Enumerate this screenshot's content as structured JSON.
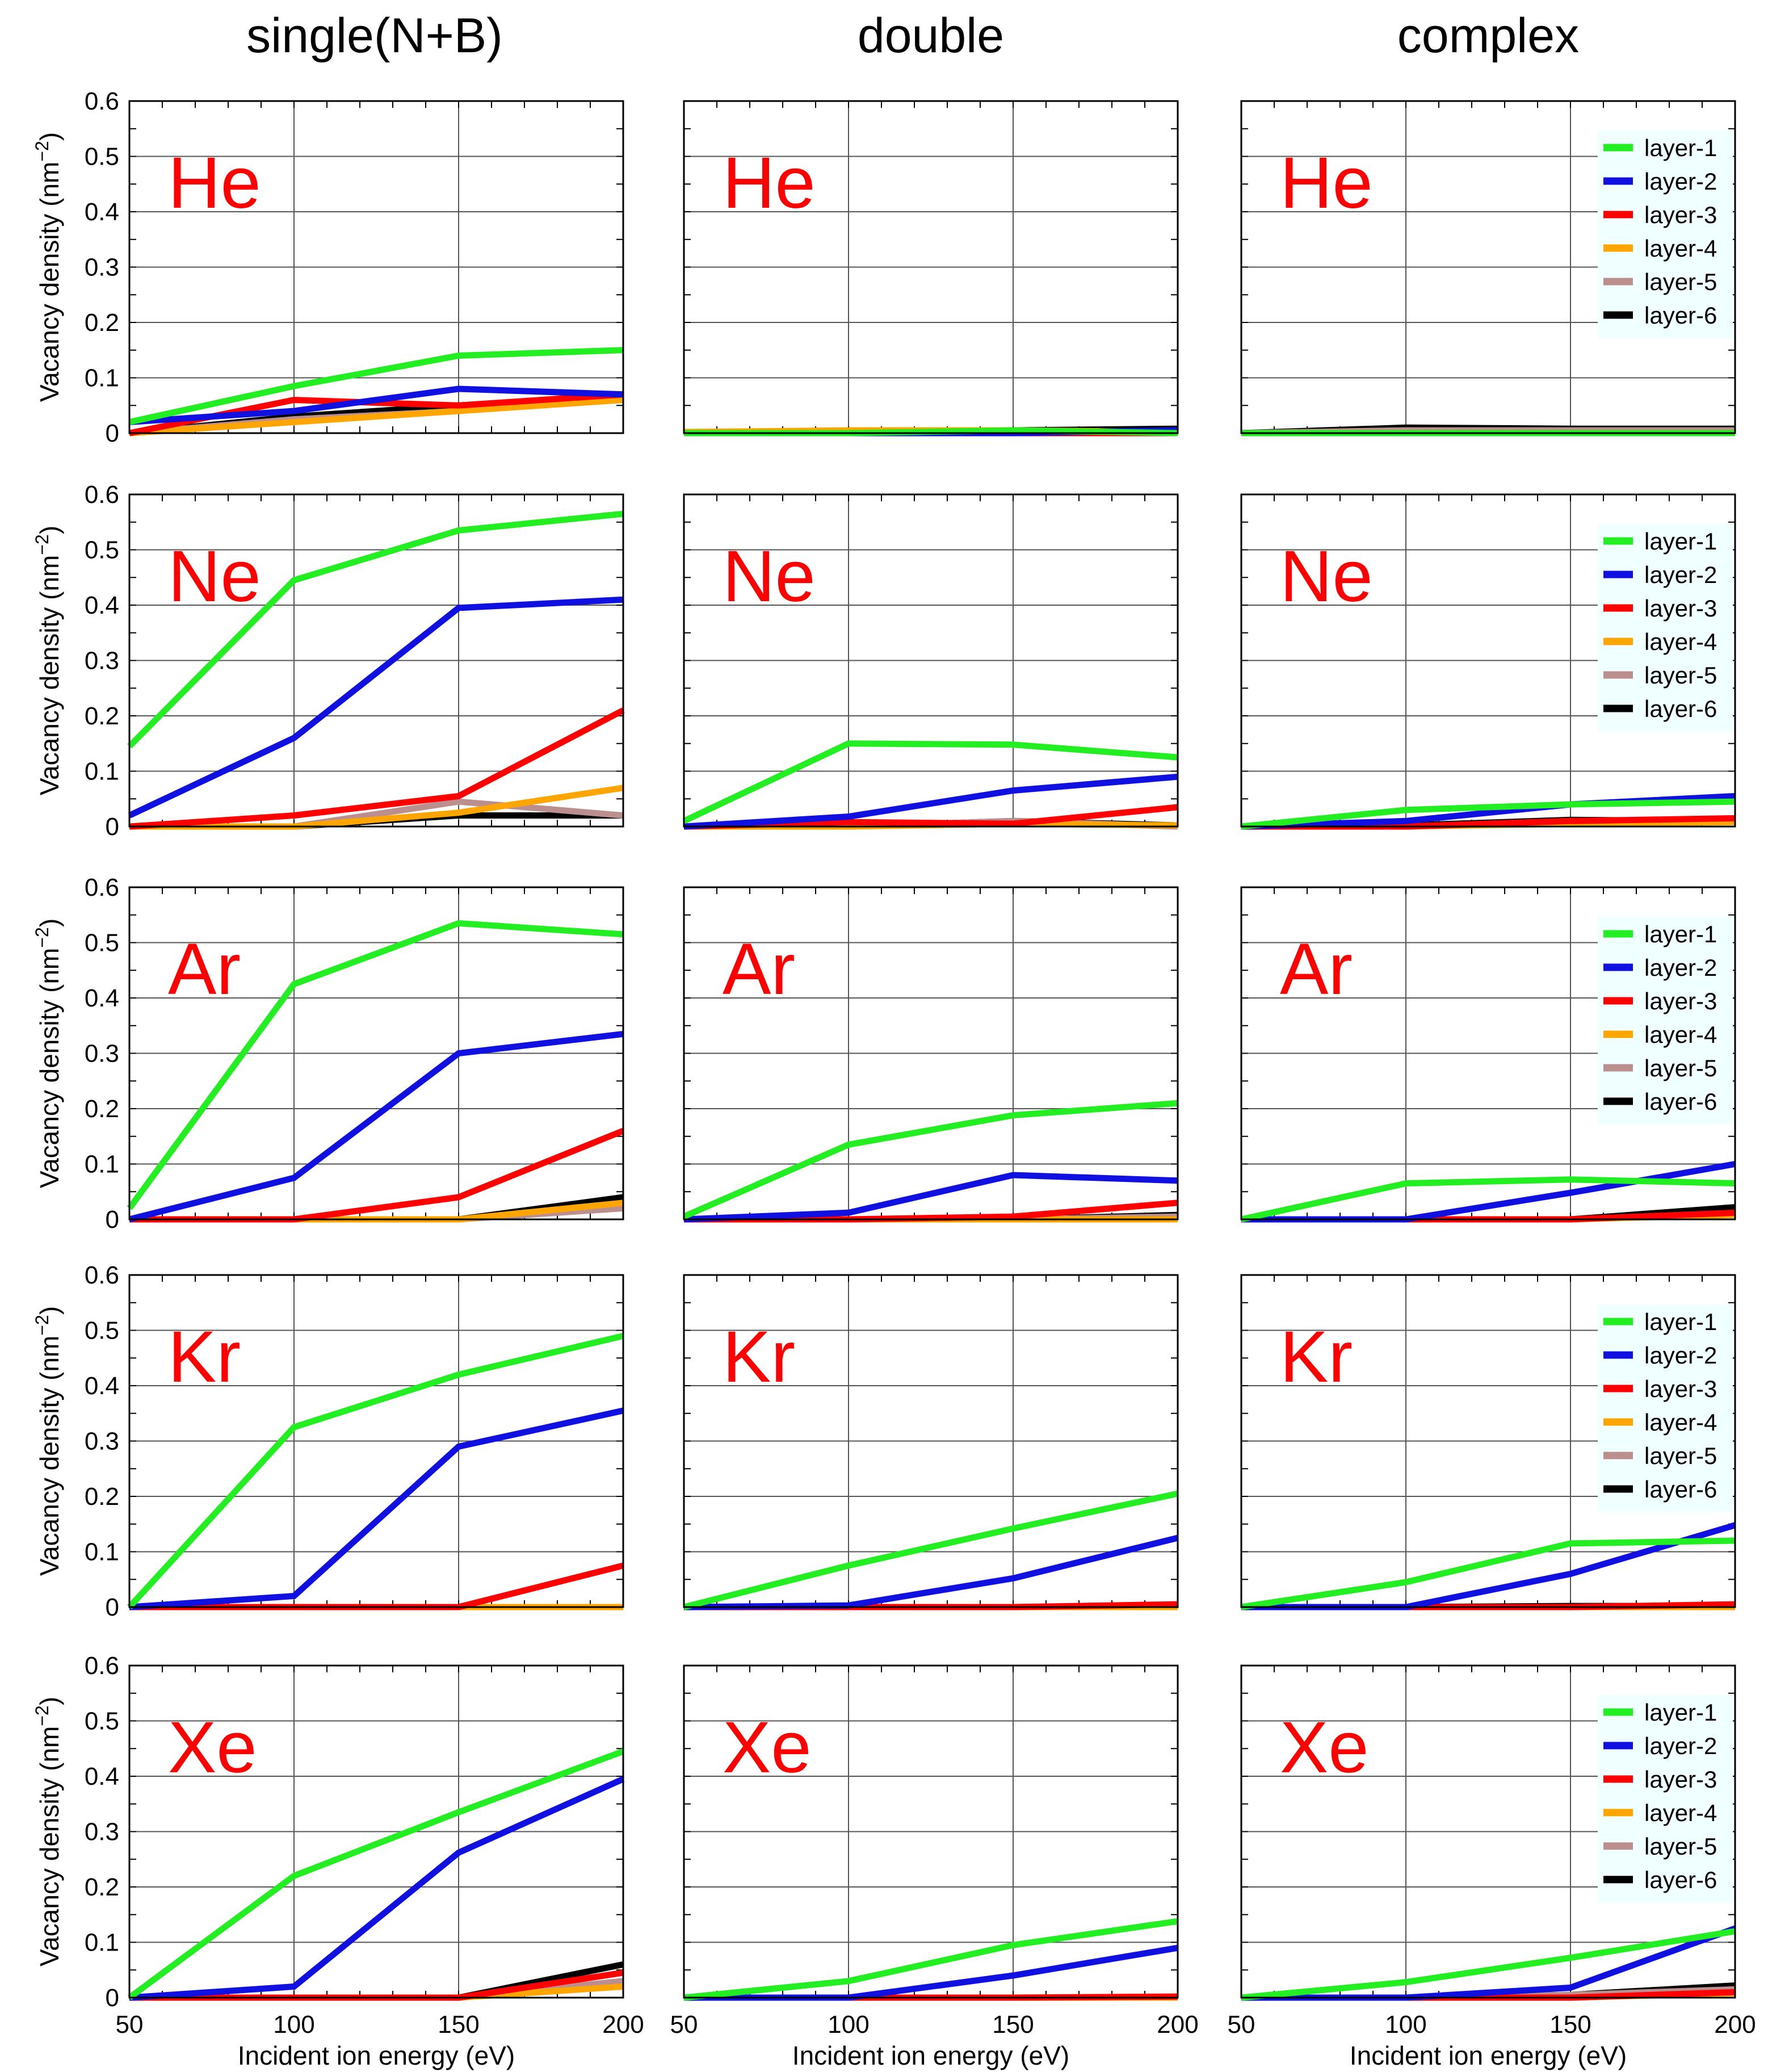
{
  "column_titles": [
    "single(N+B)",
    "double",
    "complex"
  ],
  "row_labels": [
    "He",
    "Ne",
    "Ar",
    "Kr",
    "Xe"
  ],
  "ylabel": "Vacancy density (nm",
  "ylabel_sup": "−2",
  "ylabel_close": ")",
  "xlabel": "Incident ion energy (eV)",
  "x_ticks": [
    "50",
    "100",
    "150",
    "200"
  ],
  "y_ticks": [
    "0",
    "0.1",
    "0.2",
    "0.3",
    "0.4",
    "0.5",
    "0.6"
  ],
  "legend": [
    "layer-1",
    "layer-2",
    "layer-3",
    "layer-4",
    "layer-5",
    "layer-6"
  ],
  "colors": {
    "layer-1": "#22ee22",
    "layer-2": "#1010e0",
    "layer-3": "#ff0000",
    "layer-4": "#ffa500",
    "layer-5": "#bc8f8f",
    "layer-6": "#000000",
    "gas_label": "#ff0000",
    "legend_bg": "#f0ffff"
  },
  "chart_data": [
    {
      "type": "line",
      "gas": "He",
      "column": "single(N+B)",
      "x": [
        50,
        100,
        150,
        200
      ],
      "xlim": [
        50,
        200
      ],
      "ylim": [
        0,
        0.6
      ],
      "series": [
        {
          "name": "layer-1",
          "values": [
            0.02,
            0.085,
            0.14,
            0.15
          ]
        },
        {
          "name": "layer-2",
          "values": [
            0.02,
            0.04,
            0.08,
            0.07
          ]
        },
        {
          "name": "layer-3",
          "values": [
            0.0,
            0.06,
            0.05,
            0.07
          ]
        },
        {
          "name": "layer-4",
          "values": [
            0.0,
            0.02,
            0.04,
            0.06
          ]
        },
        {
          "name": "layer-5",
          "values": [
            0.0,
            0.025,
            0.04,
            0.065
          ]
        },
        {
          "name": "layer-6",
          "values": [
            0.0,
            0.03,
            0.05,
            0.065
          ]
        }
      ]
    },
    {
      "type": "line",
      "gas": "He",
      "column": "double",
      "x": [
        50,
        100,
        150,
        200
      ],
      "xlim": [
        50,
        200
      ],
      "ylim": [
        0,
        0.6
      ],
      "series": [
        {
          "name": "layer-1",
          "values": [
            0.0,
            0.0,
            0.005,
            0.0
          ]
        },
        {
          "name": "layer-2",
          "values": [
            0.0,
            0.0,
            0.0,
            0.005
          ]
        },
        {
          "name": "layer-3",
          "values": [
            0.0,
            0.0,
            0.0,
            0.0
          ]
        },
        {
          "name": "layer-4",
          "values": [
            0.002,
            0.005,
            0.005,
            0.002
          ]
        },
        {
          "name": "layer-5",
          "values": [
            0.0,
            0.0,
            0.0,
            0.0
          ]
        },
        {
          "name": "layer-6",
          "values": [
            0.0,
            0.0,
            0.005,
            0.008
          ]
        }
      ]
    },
    {
      "type": "line",
      "gas": "He",
      "column": "complex",
      "x": [
        50,
        100,
        150,
        200
      ],
      "xlim": [
        50,
        200
      ],
      "ylim": [
        0,
        0.6
      ],
      "series": [
        {
          "name": "layer-1",
          "values": [
            0.0,
            0.0,
            0.0,
            0.0
          ]
        },
        {
          "name": "layer-2",
          "values": [
            0.0,
            0.0,
            0.0,
            0.0
          ]
        },
        {
          "name": "layer-3",
          "values": [
            0.0,
            0.0,
            0.0,
            0.0
          ]
        },
        {
          "name": "layer-4",
          "values": [
            0.0,
            0.0,
            0.0,
            0.0
          ]
        },
        {
          "name": "layer-5",
          "values": [
            0.0,
            0.005,
            0.005,
            0.005
          ]
        },
        {
          "name": "layer-6",
          "values": [
            0.0,
            0.01,
            0.008,
            0.008
          ]
        }
      ]
    },
    {
      "type": "line",
      "gas": "Ne",
      "column": "single(N+B)",
      "x": [
        50,
        100,
        150,
        200
      ],
      "xlim": [
        50,
        200
      ],
      "ylim": [
        0,
        0.6
      ],
      "series": [
        {
          "name": "layer-1",
          "values": [
            0.145,
            0.445,
            0.535,
            0.565
          ]
        },
        {
          "name": "layer-2",
          "values": [
            0.02,
            0.16,
            0.395,
            0.41
          ]
        },
        {
          "name": "layer-3",
          "values": [
            0.0,
            0.02,
            0.055,
            0.21
          ]
        },
        {
          "name": "layer-4",
          "values": [
            0.0,
            0.0,
            0.025,
            0.07
          ]
        },
        {
          "name": "layer-5",
          "values": [
            0.0,
            0.0,
            0.045,
            0.02
          ]
        },
        {
          "name": "layer-6",
          "values": [
            0.0,
            0.0,
            0.02,
            0.02
          ]
        }
      ]
    },
    {
      "type": "line",
      "gas": "Ne",
      "column": "double",
      "x": [
        50,
        100,
        150,
        200
      ],
      "xlim": [
        50,
        200
      ],
      "ylim": [
        0,
        0.6
      ],
      "series": [
        {
          "name": "layer-1",
          "values": [
            0.01,
            0.15,
            0.148,
            0.125
          ]
        },
        {
          "name": "layer-2",
          "values": [
            0.0,
            0.018,
            0.065,
            0.09
          ]
        },
        {
          "name": "layer-3",
          "values": [
            0.0,
            0.008,
            0.005,
            0.035
          ]
        },
        {
          "name": "layer-4",
          "values": [
            0.0,
            0.0,
            0.005,
            0.002
          ]
        },
        {
          "name": "layer-5",
          "values": [
            0.0,
            0.0,
            0.01,
            0.0
          ]
        },
        {
          "name": "layer-6",
          "values": [
            0.0,
            0.0,
            0.01,
            0.002
          ]
        }
      ]
    },
    {
      "type": "line",
      "gas": "Ne",
      "column": "complex",
      "x": [
        50,
        100,
        150,
        200
      ],
      "xlim": [
        50,
        200
      ],
      "ylim": [
        0,
        0.6
      ],
      "series": [
        {
          "name": "layer-1",
          "values": [
            0.0,
            0.03,
            0.04,
            0.045
          ]
        },
        {
          "name": "layer-2",
          "values": [
            0.0,
            0.01,
            0.04,
            0.055
          ]
        },
        {
          "name": "layer-3",
          "values": [
            0.0,
            0.0,
            0.01,
            0.015
          ]
        },
        {
          "name": "layer-4",
          "values": [
            0.0,
            0.0,
            0.005,
            0.008
          ]
        },
        {
          "name": "layer-5",
          "values": [
            0.0,
            0.0,
            0.01,
            0.01
          ]
        },
        {
          "name": "layer-6",
          "values": [
            0.0,
            0.002,
            0.012,
            0.01
          ]
        }
      ]
    },
    {
      "type": "line",
      "gas": "Ar",
      "column": "single(N+B)",
      "x": [
        50,
        100,
        150,
        200
      ],
      "xlim": [
        50,
        200
      ],
      "ylim": [
        0,
        0.6
      ],
      "series": [
        {
          "name": "layer-1",
          "values": [
            0.02,
            0.425,
            0.535,
            0.515
          ]
        },
        {
          "name": "layer-2",
          "values": [
            0.0,
            0.075,
            0.3,
            0.335
          ]
        },
        {
          "name": "layer-3",
          "values": [
            0.0,
            0.0,
            0.04,
            0.16
          ]
        },
        {
          "name": "layer-4",
          "values": [
            0.0,
            0.0,
            0.0,
            0.03
          ]
        },
        {
          "name": "layer-5",
          "values": [
            0.0,
            0.0,
            0.0,
            0.02
          ]
        },
        {
          "name": "layer-6",
          "values": [
            0.0,
            0.0,
            0.0,
            0.04
          ]
        }
      ]
    },
    {
      "type": "line",
      "gas": "Ar",
      "column": "double",
      "x": [
        50,
        100,
        150,
        200
      ],
      "xlim": [
        50,
        200
      ],
      "ylim": [
        0,
        0.6
      ],
      "series": [
        {
          "name": "layer-1",
          "values": [
            0.005,
            0.135,
            0.188,
            0.21
          ]
        },
        {
          "name": "layer-2",
          "values": [
            0.0,
            0.012,
            0.08,
            0.07
          ]
        },
        {
          "name": "layer-3",
          "values": [
            0.0,
            0.0,
            0.005,
            0.03
          ]
        },
        {
          "name": "layer-4",
          "values": [
            0.0,
            0.0,
            0.0,
            0.0
          ]
        },
        {
          "name": "layer-5",
          "values": [
            0.0,
            0.0,
            0.0,
            0.005
          ]
        },
        {
          "name": "layer-6",
          "values": [
            0.0,
            0.0,
            0.0,
            0.008
          ]
        }
      ]
    },
    {
      "type": "line",
      "gas": "Ar",
      "column": "complex",
      "x": [
        50,
        100,
        150,
        200
      ],
      "xlim": [
        50,
        200
      ],
      "ylim": [
        0,
        0.6
      ],
      "series": [
        {
          "name": "layer-1",
          "values": [
            0.0,
            0.065,
            0.072,
            0.065
          ]
        },
        {
          "name": "layer-2",
          "values": [
            0.0,
            0.0,
            0.048,
            0.1
          ]
        },
        {
          "name": "layer-3",
          "values": [
            0.0,
            0.0,
            0.0,
            0.012
          ]
        },
        {
          "name": "layer-4",
          "values": [
            0.0,
            0.0,
            0.0,
            0.008
          ]
        },
        {
          "name": "layer-5",
          "values": [
            0.0,
            0.0,
            0.0,
            0.01
          ]
        },
        {
          "name": "layer-6",
          "values": [
            0.0,
            0.0,
            0.0,
            0.022
          ]
        }
      ]
    },
    {
      "type": "line",
      "gas": "Kr",
      "column": "single(N+B)",
      "x": [
        50,
        100,
        150,
        200
      ],
      "xlim": [
        50,
        200
      ],
      "ylim": [
        0,
        0.6
      ],
      "series": [
        {
          "name": "layer-1",
          "values": [
            0.0,
            0.325,
            0.42,
            0.49
          ]
        },
        {
          "name": "layer-2",
          "values": [
            0.0,
            0.02,
            0.29,
            0.355
          ]
        },
        {
          "name": "layer-3",
          "values": [
            0.0,
            0.0,
            0.0,
            0.075
          ]
        },
        {
          "name": "layer-4",
          "values": [
            0.0,
            0.0,
            0.0,
            0.0
          ]
        },
        {
          "name": "layer-5",
          "values": [
            0.0,
            0.0,
            0.0,
            0.0
          ]
        },
        {
          "name": "layer-6",
          "values": [
            0.0,
            0.0,
            0.0,
            0.0
          ]
        }
      ]
    },
    {
      "type": "line",
      "gas": "Kr",
      "column": "double",
      "x": [
        50,
        100,
        150,
        200
      ],
      "xlim": [
        50,
        200
      ],
      "ylim": [
        0,
        0.6
      ],
      "series": [
        {
          "name": "layer-1",
          "values": [
            0.0,
            0.075,
            0.142,
            0.205
          ]
        },
        {
          "name": "layer-2",
          "values": [
            0.0,
            0.003,
            0.052,
            0.125
          ]
        },
        {
          "name": "layer-3",
          "values": [
            0.0,
            0.0,
            0.0,
            0.005
          ]
        },
        {
          "name": "layer-4",
          "values": [
            0.0,
            0.0,
            0.0,
            0.0
          ]
        },
        {
          "name": "layer-5",
          "values": [
            0.0,
            0.0,
            0.0,
            0.0
          ]
        },
        {
          "name": "layer-6",
          "values": [
            0.0,
            0.0,
            0.0,
            0.002
          ]
        }
      ]
    },
    {
      "type": "line",
      "gas": "Kr",
      "column": "complex",
      "x": [
        50,
        100,
        150,
        200
      ],
      "xlim": [
        50,
        200
      ],
      "ylim": [
        0,
        0.6
      ],
      "series": [
        {
          "name": "layer-1",
          "values": [
            0.0,
            0.045,
            0.115,
            0.12
          ]
        },
        {
          "name": "layer-2",
          "values": [
            0.0,
            0.0,
            0.06,
            0.148
          ]
        },
        {
          "name": "layer-3",
          "values": [
            0.0,
            0.0,
            0.0,
            0.005
          ]
        },
        {
          "name": "layer-4",
          "values": [
            0.0,
            0.0,
            0.0,
            0.0
          ]
        },
        {
          "name": "layer-5",
          "values": [
            0.0,
            0.0,
            0.0,
            0.0
          ]
        },
        {
          "name": "layer-6",
          "values": [
            0.0,
            0.0,
            0.002,
            0.002
          ]
        }
      ]
    },
    {
      "type": "line",
      "gas": "Xe",
      "column": "single(N+B)",
      "x": [
        50,
        100,
        150,
        200
      ],
      "xlim": [
        50,
        200
      ],
      "ylim": [
        0,
        0.6
      ],
      "series": [
        {
          "name": "layer-1",
          "values": [
            0.0,
            0.22,
            0.335,
            0.445
          ]
        },
        {
          "name": "layer-2",
          "values": [
            0.0,
            0.02,
            0.262,
            0.395
          ]
        },
        {
          "name": "layer-3",
          "values": [
            0.0,
            0.0,
            0.0,
            0.045
          ]
        },
        {
          "name": "layer-4",
          "values": [
            0.0,
            0.0,
            0.0,
            0.02
          ]
        },
        {
          "name": "layer-5",
          "values": [
            0.0,
            0.0,
            0.0,
            0.03
          ]
        },
        {
          "name": "layer-6",
          "values": [
            0.0,
            0.0,
            0.0,
            0.06
          ]
        }
      ]
    },
    {
      "type": "line",
      "gas": "Xe",
      "column": "double",
      "x": [
        50,
        100,
        150,
        200
      ],
      "xlim": [
        50,
        200
      ],
      "ylim": [
        0,
        0.6
      ],
      "series": [
        {
          "name": "layer-1",
          "values": [
            0.0,
            0.03,
            0.095,
            0.138
          ]
        },
        {
          "name": "layer-2",
          "values": [
            0.0,
            0.0,
            0.04,
            0.09
          ]
        },
        {
          "name": "layer-3",
          "values": [
            0.0,
            0.0,
            0.0,
            0.002
          ]
        },
        {
          "name": "layer-4",
          "values": [
            0.0,
            0.0,
            0.0,
            0.0
          ]
        },
        {
          "name": "layer-5",
          "values": [
            0.0,
            0.0,
            0.0,
            0.0
          ]
        },
        {
          "name": "layer-6",
          "values": [
            0.0,
            0.0,
            0.0,
            0.0
          ]
        }
      ]
    },
    {
      "type": "line",
      "gas": "Xe",
      "column": "complex",
      "x": [
        50,
        100,
        150,
        200
      ],
      "xlim": [
        50,
        200
      ],
      "ylim": [
        0,
        0.6
      ],
      "series": [
        {
          "name": "layer-1",
          "values": [
            0.0,
            0.028,
            0.072,
            0.12
          ]
        },
        {
          "name": "layer-2",
          "values": [
            0.0,
            0.0,
            0.018,
            0.125
          ]
        },
        {
          "name": "layer-3",
          "values": [
            0.0,
            0.0,
            0.0,
            0.01
          ]
        },
        {
          "name": "layer-4",
          "values": [
            0.0,
            0.0,
            0.0,
            0.008
          ]
        },
        {
          "name": "layer-5",
          "values": [
            0.0,
            0.0,
            0.005,
            0.015
          ]
        },
        {
          "name": "layer-6",
          "values": [
            0.0,
            0.0,
            0.005,
            0.022
          ]
        }
      ]
    }
  ]
}
